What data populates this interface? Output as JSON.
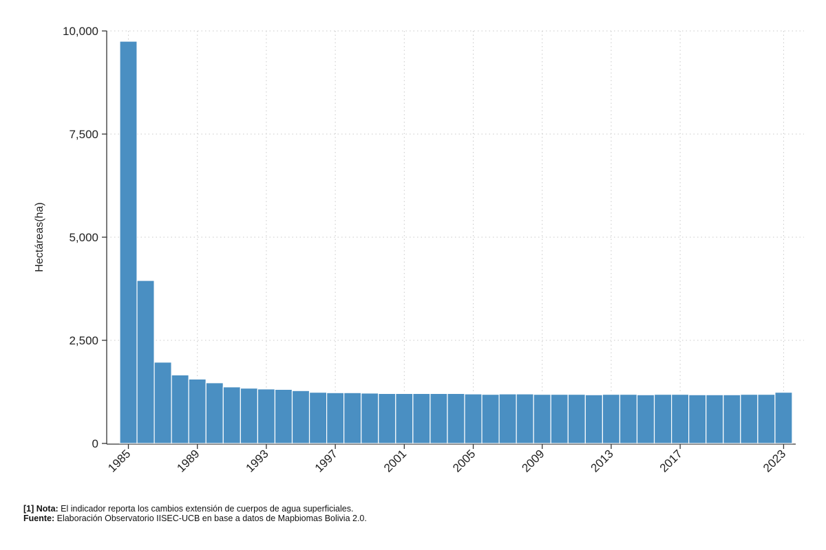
{
  "chart_data": {
    "type": "bar",
    "ylabel": "Hectáreas(ha)",
    "xlabel": "",
    "ylim": [
      0,
      10000
    ],
    "yticks": [
      0,
      2500,
      5000,
      7500,
      10000
    ],
    "ytick_labels": [
      "0",
      "2,500",
      "5,000",
      "7,500",
      "10,000"
    ],
    "categories": [
      "1985",
      "1986",
      "1987",
      "1988",
      "1989",
      "1990",
      "1991",
      "1992",
      "1993",
      "1994",
      "1995",
      "1996",
      "1997",
      "1998",
      "1999",
      "2000",
      "2001",
      "2002",
      "2003",
      "2004",
      "2005",
      "2006",
      "2007",
      "2008",
      "2009",
      "2010",
      "2011",
      "2012",
      "2013",
      "2014",
      "2015",
      "2016",
      "2017",
      "2018",
      "2019",
      "2020",
      "2021",
      "2022",
      "2023"
    ],
    "values": [
      9750,
      3950,
      1970,
      1660,
      1560,
      1470,
      1370,
      1340,
      1320,
      1310,
      1280,
      1240,
      1230,
      1230,
      1220,
      1210,
      1210,
      1210,
      1210,
      1210,
      1200,
      1190,
      1200,
      1200,
      1190,
      1190,
      1190,
      1180,
      1190,
      1190,
      1180,
      1190,
      1190,
      1180,
      1180,
      1180,
      1190,
      1190,
      1240
    ],
    "xtick_labels": [
      "1985",
      "1989",
      "1993",
      "1997",
      "2001",
      "2005",
      "2009",
      "2013",
      "2017",
      "2023"
    ],
    "grid": true,
    "bar_color": "#4a8fc2"
  },
  "notes": {
    "line1_bold": "[1] Nota:",
    "line1_text": " El indicador reporta los cambios extensión de cuerpos de agua superficiales.",
    "line2_bold": "Fuente:",
    "line2_text": " Elaboración Observatorio IISEC-UCB en base a datos de Mapbiomas Bolivia 2.0."
  }
}
